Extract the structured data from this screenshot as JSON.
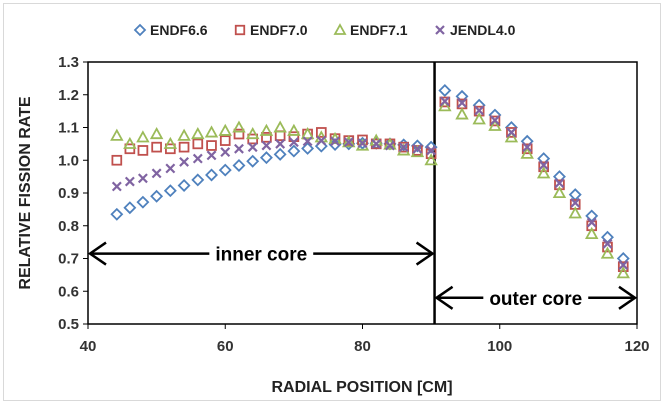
{
  "chart_data": {
    "type": "scatter",
    "xlabel": "RADIAL POSITION [CM]",
    "ylabel": "RELATIVE FISSION RATE",
    "xlim": [
      40,
      120
    ],
    "ylim": [
      0.5,
      1.3
    ],
    "x_ticks": [
      "40",
      "60",
      "80",
      "100",
      "120"
    ],
    "y_ticks": [
      "0.5",
      "0.6",
      "0.7",
      "0.8",
      "0.9",
      "1.0",
      "1.1",
      "1.2",
      "1.3"
    ],
    "grid": false,
    "legend_position": "top",
    "divider_x": 90.5,
    "annotations": [
      {
        "text": "inner core",
        "x_from": 40,
        "x_to": 90.5,
        "y": 0.715
      },
      {
        "text": "outer core",
        "x_from": 90.5,
        "x_to": 120,
        "y": 0.58
      }
    ],
    "series": [
      {
        "name": "ENDF6.6",
        "marker": "diamond",
        "color": "#4f81bd",
        "points": [
          [
            44.2,
            0.835
          ],
          [
            46.1,
            0.855
          ],
          [
            48.0,
            0.872
          ],
          [
            50.0,
            0.89
          ],
          [
            52.0,
            0.907
          ],
          [
            54.0,
            0.923
          ],
          [
            56.0,
            0.94
          ],
          [
            58.0,
            0.955
          ],
          [
            60.0,
            0.97
          ],
          [
            62.0,
            0.984
          ],
          [
            64.0,
            0.997
          ],
          [
            66.0,
            1.008
          ],
          [
            68.0,
            1.018
          ],
          [
            70.0,
            1.028
          ],
          [
            72.0,
            1.036
          ],
          [
            74.0,
            1.043
          ],
          [
            76.0,
            1.048
          ],
          [
            78.0,
            1.05
          ],
          [
            80.0,
            1.052
          ],
          [
            82.0,
            1.052
          ],
          [
            84.0,
            1.05
          ],
          [
            86.0,
            1.047
          ],
          [
            88.0,
            1.044
          ],
          [
            90.0,
            1.04
          ],
          [
            92.0,
            1.213
          ],
          [
            94.5,
            1.195
          ],
          [
            97.0,
            1.168
          ],
          [
            99.3,
            1.138
          ],
          [
            101.7,
            1.1
          ],
          [
            104.0,
            1.058
          ],
          [
            106.4,
            1.005
          ],
          [
            108.7,
            0.95
          ],
          [
            111.0,
            0.895
          ],
          [
            113.4,
            0.83
          ],
          [
            115.7,
            0.765
          ],
          [
            118.0,
            0.7
          ]
        ]
      },
      {
        "name": "ENDF7.0",
        "marker": "square",
        "color": "#c0504d",
        "points": [
          [
            44.2,
            1.0
          ],
          [
            46.1,
            1.035
          ],
          [
            48.0,
            1.03
          ],
          [
            50.0,
            1.04
          ],
          [
            52.0,
            1.035
          ],
          [
            54.0,
            1.04
          ],
          [
            56.0,
            1.05
          ],
          [
            58.0,
            1.045
          ],
          [
            60.0,
            1.06
          ],
          [
            62.0,
            1.08
          ],
          [
            64.0,
            1.065
          ],
          [
            66.0,
            1.07
          ],
          [
            68.0,
            1.075
          ],
          [
            70.0,
            1.072
          ],
          [
            72.0,
            1.08
          ],
          [
            74.0,
            1.085
          ],
          [
            76.0,
            1.066
          ],
          [
            78.0,
            1.06
          ],
          [
            80.0,
            1.062
          ],
          [
            82.0,
            1.05
          ],
          [
            84.0,
            1.05
          ],
          [
            86.0,
            1.04
          ],
          [
            88.0,
            1.03
          ],
          [
            90.0,
            1.02
          ],
          [
            92.0,
            1.178
          ],
          [
            94.5,
            1.172
          ],
          [
            97.0,
            1.15
          ],
          [
            99.3,
            1.12
          ],
          [
            101.7,
            1.085
          ],
          [
            104.0,
            1.035
          ],
          [
            106.4,
            0.98
          ],
          [
            108.7,
            0.925
          ],
          [
            111.0,
            0.865
          ],
          [
            113.4,
            0.8
          ],
          [
            115.7,
            0.735
          ],
          [
            118.0,
            0.675
          ]
        ]
      },
      {
        "name": "ENDF7.1",
        "marker": "triangle",
        "color": "#9bbb59",
        "points": [
          [
            44.2,
            1.075
          ],
          [
            46.1,
            1.05
          ],
          [
            48.0,
            1.07
          ],
          [
            50.0,
            1.08
          ],
          [
            52.0,
            1.05
          ],
          [
            54.0,
            1.075
          ],
          [
            56.0,
            1.08
          ],
          [
            58.0,
            1.085
          ],
          [
            60.0,
            1.09
          ],
          [
            62.0,
            1.1
          ],
          [
            64.0,
            1.08
          ],
          [
            66.0,
            1.09
          ],
          [
            68.0,
            1.1
          ],
          [
            70.0,
            1.09
          ],
          [
            72.0,
            1.08
          ],
          [
            74.0,
            1.07
          ],
          [
            76.0,
            1.065
          ],
          [
            78.0,
            1.055
          ],
          [
            80.0,
            1.045
          ],
          [
            82.0,
            1.06
          ],
          [
            84.0,
            1.048
          ],
          [
            86.0,
            1.03
          ],
          [
            88.0,
            1.025
          ],
          [
            90.0,
            1.0
          ],
          [
            92.0,
            1.165
          ],
          [
            94.5,
            1.14
          ],
          [
            97.0,
            1.125
          ],
          [
            99.3,
            1.105
          ],
          [
            101.7,
            1.07
          ],
          [
            104.0,
            1.02
          ],
          [
            106.4,
            0.96
          ],
          [
            108.7,
            0.9
          ],
          [
            111.0,
            0.838
          ],
          [
            113.4,
            0.775
          ],
          [
            115.7,
            0.715
          ],
          [
            118.0,
            0.655
          ]
        ]
      },
      {
        "name": "JENDL4.0",
        "marker": "x",
        "color": "#8064a2",
        "points": [
          [
            44.2,
            0.92
          ],
          [
            46.1,
            0.935
          ],
          [
            48.0,
            0.945
          ],
          [
            50.0,
            0.96
          ],
          [
            52.0,
            0.975
          ],
          [
            54.0,
            0.995
          ],
          [
            56.0,
            1.005
          ],
          [
            58.0,
            1.015
          ],
          [
            60.0,
            1.025
          ],
          [
            62.0,
            1.035
          ],
          [
            64.0,
            1.04
          ],
          [
            66.0,
            1.045
          ],
          [
            68.0,
            1.05
          ],
          [
            70.0,
            1.055
          ],
          [
            72.0,
            1.058
          ],
          [
            74.0,
            1.06
          ],
          [
            76.0,
            1.058
          ],
          [
            78.0,
            1.055
          ],
          [
            80.0,
            1.052
          ],
          [
            82.0,
            1.05
          ],
          [
            84.0,
            1.045
          ],
          [
            86.0,
            1.04
          ],
          [
            88.0,
            1.035
          ],
          [
            90.0,
            1.03
          ],
          [
            92.0,
            1.18
          ],
          [
            94.5,
            1.175
          ],
          [
            97.0,
            1.152
          ],
          [
            99.3,
            1.122
          ],
          [
            101.7,
            1.085
          ],
          [
            104.0,
            1.04
          ],
          [
            106.4,
            0.985
          ],
          [
            108.7,
            0.93
          ],
          [
            111.0,
            0.87
          ],
          [
            113.4,
            0.81
          ],
          [
            115.7,
            0.745
          ],
          [
            118.0,
            0.68
          ]
        ]
      }
    ]
  }
}
